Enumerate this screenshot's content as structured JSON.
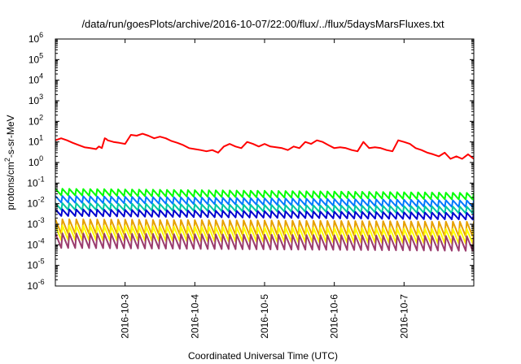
{
  "chart_data": {
    "type": "line",
    "title": "/data/run/goesPlots/archive/2016-10-07/22:00/flux/../flux/5daysMarsFluxes.txt",
    "xlabel": "Coordinated Universal Time (UTC)",
    "ylabel": {
      "prefix": "protons/cm",
      "sup": "2",
      "suffix": "-s-sr-MeV"
    },
    "y_scale": "log",
    "ylim": [
      1e-06,
      1000000.0
    ],
    "y_ticks": [
      {
        "base": "10",
        "exp": "-6"
      },
      {
        "base": "10",
        "exp": "-5"
      },
      {
        "base": "10",
        "exp": "-4"
      },
      {
        "base": "10",
        "exp": "-3"
      },
      {
        "base": "10",
        "exp": "-2"
      },
      {
        "base": "10",
        "exp": "-1"
      },
      {
        "base": "10",
        "exp": "0"
      },
      {
        "base": "10",
        "exp": "1"
      },
      {
        "base": "10",
        "exp": "2"
      },
      {
        "base": "10",
        "exp": "3"
      },
      {
        "base": "10",
        "exp": "4"
      },
      {
        "base": "10",
        "exp": "5"
      },
      {
        "base": "10",
        "exp": "6"
      }
    ],
    "xlim": [
      "2016-10-02T00:00",
      "2016-10-08T00:00"
    ],
    "x_ticks": [
      "2016-10-3",
      "2016-10-4",
      "2016-10-5",
      "2016-10-6",
      "2016-10-7"
    ],
    "grid": false,
    "series": [
      {
        "color": "#ff0000",
        "x": [
          "2016-10-02T00:00",
          "2016-10-02T02:00",
          "2016-10-02T04:00",
          "2016-10-02T06:00",
          "2016-10-02T08:00",
          "2016-10-02T10:00",
          "2016-10-02T12:00",
          "2016-10-02T14:00",
          "2016-10-02T15:00",
          "2016-10-02T16:00",
          "2016-10-02T17:00",
          "2016-10-02T17:30",
          "2016-10-02T18:00",
          "2016-10-02T20:00",
          "2016-10-02T22:00",
          "2016-10-03T00:00",
          "2016-10-03T02:00",
          "2016-10-03T04:00",
          "2016-10-03T06:00",
          "2016-10-03T08:00",
          "2016-10-03T10:00",
          "2016-10-03T12:00",
          "2016-10-03T14:00",
          "2016-10-03T16:00",
          "2016-10-03T18:00",
          "2016-10-03T20:00",
          "2016-10-03T22:00",
          "2016-10-04T00:00",
          "2016-10-04T02:00",
          "2016-10-04T04:00",
          "2016-10-04T06:00",
          "2016-10-04T08:00",
          "2016-10-04T10:00",
          "2016-10-04T12:00",
          "2016-10-04T14:00",
          "2016-10-04T16:00",
          "2016-10-04T18:00",
          "2016-10-04T20:00",
          "2016-10-04T22:00",
          "2016-10-05T00:00",
          "2016-10-05T02:00",
          "2016-10-05T04:00",
          "2016-10-05T06:00",
          "2016-10-05T08:00",
          "2016-10-05T10:00",
          "2016-10-05T12:00",
          "2016-10-05T14:00",
          "2016-10-05T16:00",
          "2016-10-05T18:00",
          "2016-10-05T20:00",
          "2016-10-05T22:00",
          "2016-10-06T00:00",
          "2016-10-06T02:00",
          "2016-10-06T04:00",
          "2016-10-06T06:00",
          "2016-10-06T08:00",
          "2016-10-06T10:00",
          "2016-10-06T12:00",
          "2016-10-06T14:00",
          "2016-10-06T16:00",
          "2016-10-06T18:00",
          "2016-10-06T20:00",
          "2016-10-06T22:00",
          "2016-10-07T00:00",
          "2016-10-07T02:00",
          "2016-10-07T04:00",
          "2016-10-07T06:00",
          "2016-10-07T08:00",
          "2016-10-07T10:00",
          "2016-10-07T12:00",
          "2016-10-07T14:00",
          "2016-10-07T16:00",
          "2016-10-07T18:00",
          "2016-10-07T20:00",
          "2016-10-07T22:00",
          "2016-10-08T00:00"
        ],
        "y": [
          12,
          15,
          12,
          9,
          7,
          5.5,
          5,
          4.5,
          6,
          5,
          15,
          14,
          12,
          10,
          9,
          8,
          22,
          20,
          25,
          20,
          15,
          18,
          15,
          11,
          9,
          7,
          5,
          4.5,
          4,
          3.5,
          4,
          3,
          6,
          8,
          6,
          5,
          10,
          8,
          6,
          8,
          6,
          5.5,
          5,
          4,
          6,
          5,
          10,
          8,
          12,
          10,
          7,
          5,
          5.5,
          5,
          4,
          3.5,
          10,
          5,
          5.5,
          5,
          4,
          3.5,
          12,
          10,
          8,
          5,
          4,
          3,
          2.5,
          2,
          3,
          1.5,
          2,
          1.5,
          2.5,
          1.5
        ]
      },
      {
        "color": "#00ff00",
        "x": [
          "2016-10-02T00:00",
          "2016-10-08T00:00"
        ],
        "y": [
          0.045,
          0.028
        ]
      },
      {
        "color": "#0078ff",
        "x": [
          "2016-10-02T00:00",
          "2016-10-08T00:00"
        ],
        "y": [
          0.02,
          0.012
        ]
      },
      {
        "color": "#00c8a0",
        "x": [
          "2016-10-02T00:00",
          "2016-10-08T00:00"
        ],
        "y": [
          0.009,
          0.006
        ]
      },
      {
        "color": "#0000d0",
        "x": [
          "2016-10-02T00:00",
          "2016-10-08T00:00"
        ],
        "y": [
          0.0045,
          0.003
        ]
      },
      {
        "color": "#e6a000",
        "x": [
          "2016-10-02T00:00",
          "2016-10-08T00:00"
        ],
        "y": [
          0.0012,
          0.0009
        ]
      },
      {
        "color": "#ffff00",
        "x": [
          "2016-10-02T00:00",
          "2016-10-08T00:00"
        ],
        "y": [
          0.0006,
          0.0004
        ]
      },
      {
        "color": "#9b3c6e",
        "x": [
          "2016-10-02T00:00",
          "2016-10-08T00:00"
        ],
        "y": [
          0.00025,
          0.00018
        ]
      }
    ]
  }
}
